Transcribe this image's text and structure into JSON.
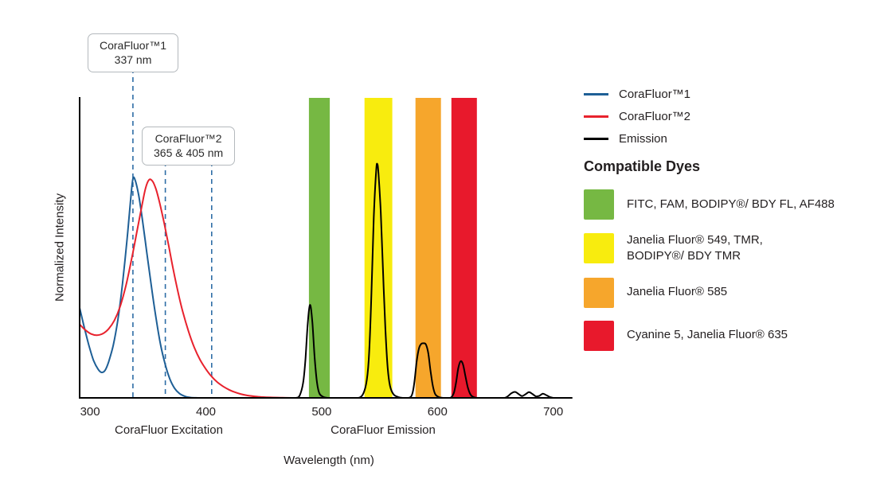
{
  "colors": {
    "cf1_blue": "#1e5f96",
    "cf2_red": "#e8222d",
    "emission_black": "#000000",
    "dashed_line": "#2e6da6",
    "axis": "#000000",
    "text": "#231f20"
  },
  "callouts": [
    {
      "title": "CoraFluor™1",
      "value": "337 nm",
      "anchor_nm": 337
    },
    {
      "title": "CoraFluor™2",
      "value": "365 & 405 nm",
      "anchor_nm": 385
    }
  ],
  "legend": {
    "items": [
      {
        "label": "CoraFluor™1",
        "color": "#1e5f96"
      },
      {
        "label": "CoraFluor™2",
        "color": "#e8222d"
      },
      {
        "label": "Emission",
        "color": "#000000"
      }
    ]
  },
  "compatible_dyes": {
    "heading": "Compatible Dyes",
    "items": [
      {
        "color": "#76b843",
        "label": "FITC, FAM, BODIPY®/ BDY FL, AF488"
      },
      {
        "color": "#f8ec0e",
        "label": "Janelia Fluor® 549, TMR,\nBODIPY®/ BDY TMR"
      },
      {
        "color": "#f6a62c",
        "label": "Janelia Fluor® 585"
      },
      {
        "color": "#e8192c",
        "label": "Cyanine 5, Janelia Fluor® 635"
      }
    ]
  },
  "axis": {
    "x_ticks": [
      300,
      400,
      500,
      600,
      700
    ],
    "x_section_labels": [
      {
        "label": "CoraFluor Excitation",
        "center_nm": 368
      },
      {
        "label": "CoraFluor Emission",
        "center_nm": 553
      }
    ],
    "xlabel": "Wavelength (nm)",
    "ylabel": "Normalized Intensity"
  },
  "chart_data": {
    "type": "line",
    "title": "",
    "xlabel": "Wavelength (nm)",
    "ylabel": "Normalized Intensity",
    "xlim": [
      291,
      716
    ],
    "ylim": [
      0,
      1
    ],
    "grid": false,
    "legend_position": "right",
    "x_ticks": [
      300,
      400,
      500,
      600,
      700
    ],
    "dashed_lines": [
      337,
      365,
      405
    ],
    "bands": [
      {
        "name": "fitc-fam-window",
        "x1": 489,
        "x2": 507,
        "color": "#76b843"
      },
      {
        "name": "jf549-tmr-window",
        "x1": 537,
        "x2": 561,
        "color": "#f8ec0e"
      },
      {
        "name": "jf585-window",
        "x1": 581,
        "x2": 603,
        "color": "#f6a62c"
      },
      {
        "name": "cy5-jf635-window",
        "x1": 612,
        "x2": 634,
        "color": "#e8192c"
      }
    ],
    "series": [
      {
        "name": "CoraFluor™1",
        "color": "#1e5f96",
        "points": [
          [
            291,
            0.3
          ],
          [
            295,
            0.235
          ],
          [
            299,
            0.175
          ],
          [
            303,
            0.125
          ],
          [
            307,
            0.095
          ],
          [
            310,
            0.085
          ],
          [
            313,
            0.092
          ],
          [
            316,
            0.12
          ],
          [
            320,
            0.175
          ],
          [
            324,
            0.26
          ],
          [
            328,
            0.38
          ],
          [
            332,
            0.53
          ],
          [
            335,
            0.66
          ],
          [
            337,
            0.73
          ],
          [
            339,
            0.725
          ],
          [
            342,
            0.675
          ],
          [
            345,
            0.6
          ],
          [
            349,
            0.485
          ],
          [
            353,
            0.37
          ],
          [
            357,
            0.265
          ],
          [
            361,
            0.175
          ],
          [
            365,
            0.11
          ],
          [
            369,
            0.062
          ],
          [
            373,
            0.032
          ],
          [
            377,
            0.015
          ],
          [
            382,
            0.005
          ],
          [
            387,
            0.001
          ],
          [
            393,
            0
          ]
        ]
      },
      {
        "name": "CoraFluor™2",
        "color": "#e8222d",
        "points": [
          [
            291,
            0.245
          ],
          [
            296,
            0.226
          ],
          [
            301,
            0.213
          ],
          [
            306,
            0.209
          ],
          [
            311,
            0.214
          ],
          [
            316,
            0.23
          ],
          [
            321,
            0.258
          ],
          [
            326,
            0.305
          ],
          [
            331,
            0.375
          ],
          [
            336,
            0.465
          ],
          [
            341,
            0.565
          ],
          [
            345,
            0.645
          ],
          [
            348,
            0.7
          ],
          [
            351,
            0.727
          ],
          [
            354,
            0.722
          ],
          [
            357,
            0.695
          ],
          [
            360,
            0.652
          ],
          [
            364,
            0.582
          ],
          [
            368,
            0.505
          ],
          [
            372,
            0.425
          ],
          [
            376,
            0.352
          ],
          [
            380,
            0.288
          ],
          [
            385,
            0.222
          ],
          [
            390,
            0.168
          ],
          [
            395,
            0.127
          ],
          [
            400,
            0.096
          ],
          [
            405,
            0.071
          ],
          [
            410,
            0.052
          ],
          [
            415,
            0.038
          ],
          [
            420,
            0.027
          ],
          [
            425,
            0.019
          ],
          [
            430,
            0.013
          ],
          [
            436,
            0.008
          ],
          [
            442,
            0.005
          ],
          [
            448,
            0.003
          ],
          [
            456,
            0.0015
          ],
          [
            466,
            0.0005
          ],
          [
            475,
            0
          ]
        ]
      },
      {
        "name": "Emission",
        "color": "#000000",
        "points": [
          [
            455,
            0
          ],
          [
            465,
            0
          ],
          [
            472,
            0
          ],
          [
            478,
            0
          ],
          [
            481,
            0.008
          ],
          [
            484,
            0.05
          ],
          [
            486,
            0.13
          ],
          [
            488,
            0.25
          ],
          [
            490,
            0.31
          ],
          [
            492,
            0.25
          ],
          [
            494,
            0.13
          ],
          [
            496,
            0.05
          ],
          [
            498,
            0.015
          ],
          [
            501,
            0.004
          ],
          [
            505,
            0
          ],
          [
            512,
            0
          ],
          [
            520,
            0
          ],
          [
            526,
            0
          ],
          [
            532,
            0
          ],
          [
            536,
            0.015
          ],
          [
            539,
            0.06
          ],
          [
            541,
            0.15
          ],
          [
            543,
            0.35
          ],
          [
            545,
            0.6
          ],
          [
            547,
            0.755
          ],
          [
            548,
            0.78
          ],
          [
            549,
            0.75
          ],
          [
            551,
            0.62
          ],
          [
            553,
            0.42
          ],
          [
            555,
            0.23
          ],
          [
            557,
            0.1
          ],
          [
            559,
            0.04
          ],
          [
            562,
            0.012
          ],
          [
            566,
            0.003
          ],
          [
            570,
            0
          ],
          [
            575,
            0
          ],
          [
            578,
            0.01
          ],
          [
            580,
            0.05
          ],
          [
            582,
            0.12
          ],
          [
            584,
            0.165
          ],
          [
            586,
            0.18
          ],
          [
            588,
            0.182
          ],
          [
            590,
            0.178
          ],
          [
            592,
            0.15
          ],
          [
            594,
            0.09
          ],
          [
            596,
            0.04
          ],
          [
            598,
            0.013
          ],
          [
            601,
            0.003
          ],
          [
            605,
            0
          ],
          [
            611,
            0
          ],
          [
            614,
            0.015
          ],
          [
            616,
            0.05
          ],
          [
            618,
            0.1
          ],
          [
            620,
            0.122
          ],
          [
            622,
            0.112
          ],
          [
            624,
            0.075
          ],
          [
            626,
            0.038
          ],
          [
            628,
            0.015
          ],
          [
            630,
            0.005
          ],
          [
            634,
            0
          ],
          [
            640,
            0
          ],
          [
            646,
            0
          ],
          [
            652,
            0
          ],
          [
            658,
            0
          ],
          [
            661,
            0.006
          ],
          [
            664,
            0.016
          ],
          [
            667,
            0.02
          ],
          [
            670,
            0.013
          ],
          [
            673,
            0.006
          ],
          [
            676,
            0.012
          ],
          [
            679,
            0.019
          ],
          [
            682,
            0.013
          ],
          [
            685,
            0.005
          ],
          [
            688,
            0.007
          ],
          [
            691,
            0.014
          ],
          [
            694,
            0.009
          ],
          [
            697,
            0.003
          ],
          [
            700,
            0
          ],
          [
            706,
            0
          ],
          [
            716,
            0
          ]
        ]
      }
    ]
  }
}
